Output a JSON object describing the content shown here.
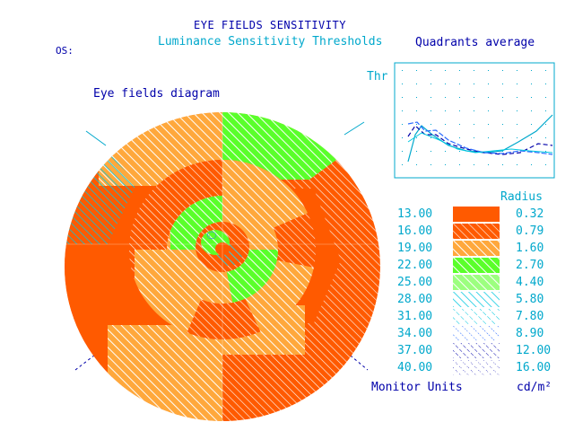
{
  "header": {
    "title": "EYE FIELDS SENSITIVITY",
    "subtitle": "Luminance Sensitivity Thresholds",
    "eye_label": "OS:"
  },
  "diagram": {
    "title": "Eye fields diagram"
  },
  "quadrants": {
    "title": "Quadrants average",
    "y_label": "Thr"
  },
  "legend": {
    "radius_header": "Radius",
    "left_footer": "Monitor Units",
    "right_footer": "cd/m²",
    "items": [
      {
        "value": "13.00",
        "radius": "0.32",
        "pattern": "solid-dark-orange"
      },
      {
        "value": "16.00",
        "radius": "0.79",
        "pattern": "hatch-orange-dense"
      },
      {
        "value": "19.00",
        "radius": "1.60",
        "pattern": "hatch-light-orange"
      },
      {
        "value": "22.00",
        "radius": "2.70",
        "pattern": "hatch-green-dense"
      },
      {
        "value": "25.00",
        "radius": "4.40",
        "pattern": "hatch-green-light"
      },
      {
        "value": "28.00",
        "radius": "5.80",
        "pattern": "hatch-cyan-dense"
      },
      {
        "value": "31.00",
        "radius": "7.80",
        "pattern": "hatch-cyan-light"
      },
      {
        "value": "34.00",
        "radius": "8.90",
        "pattern": "hatch-blue-light"
      },
      {
        "value": "37.00",
        "radius": "12.00",
        "pattern": "hatch-blue-dense"
      },
      {
        "value": "40.00",
        "radius": "16.00",
        "pattern": "hatch-navy"
      }
    ]
  },
  "colors": {
    "dark_orange": "#ff5a00",
    "orange": "#ff7a1a",
    "light_orange": "#ffa83c",
    "green": "#5aff2a",
    "cyan": "#00c8e0",
    "blue": "#2a6aff",
    "navy": "#0000aa",
    "text_cyan": "#00a8cc"
  }
}
